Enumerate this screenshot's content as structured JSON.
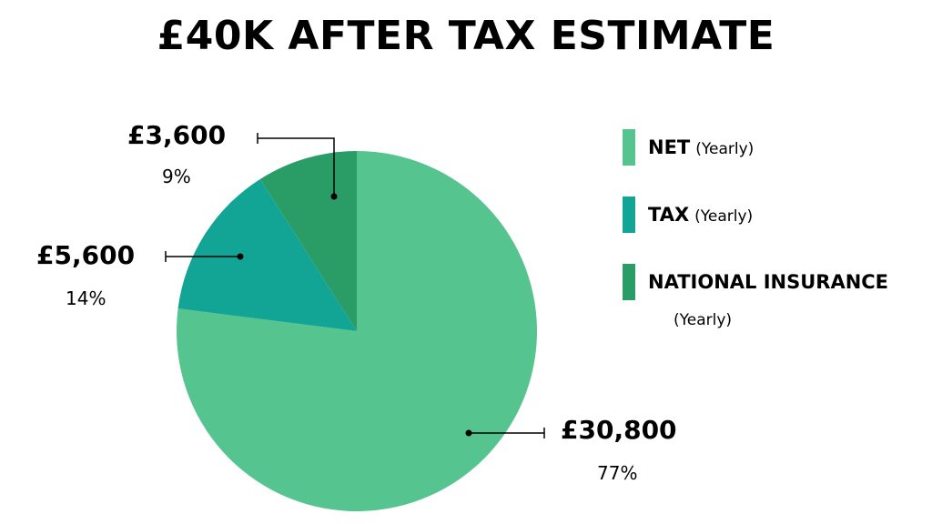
{
  "chart_data": {
    "type": "pie",
    "title": "£40K AFTER TAX ESTIMATE",
    "legend_position": "right",
    "slices": [
      {
        "key": "net",
        "name": "NET",
        "period": "(Yearly)",
        "value_label": "£30,800",
        "value": 30800,
        "percent_label": "77%",
        "percent": 77,
        "color": "#56c48e"
      },
      {
        "key": "tax",
        "name": "TAX",
        "period": "(Yearly)",
        "value_label": "£5,600",
        "value": 5600,
        "percent_label": "14%",
        "percent": 14,
        "color": "#12a596"
      },
      {
        "key": "ni",
        "name": "NATIONAL INSURANCE",
        "period": "(Yearly)",
        "value_label": "£3,600",
        "value": 3600,
        "percent_label": "9%",
        "percent": 9,
        "color": "#2a9d66"
      }
    ]
  }
}
